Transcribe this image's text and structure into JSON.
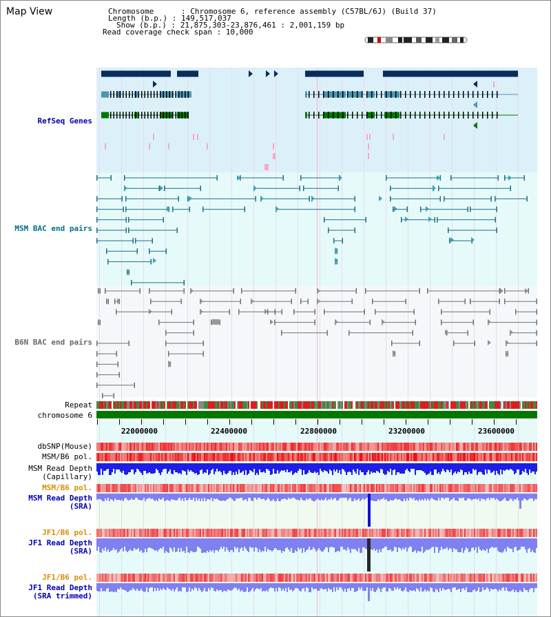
{
  "header": {
    "page_title": "Map View",
    "info_lines": [
      "Chromosome      : Chromosome 6, reference assembly (C57BL/6J) (Build 37)",
      "Length (b.p.) : 149,517,037",
      "Show (b.p.) : 21,875,303-23,876,461 : 2,001,159 bp",
      "Read coverage check span : 10,000"
    ]
  },
  "tracks": {
    "refseq_label": "RefSeq Genes",
    "msm_bac_label": "MSM BAC end pairs",
    "b6n_bac_label": "B6N BAC end pairs",
    "repeat_label": "Repeat",
    "chromosome_label": "chromosome 6",
    "dbsnp_label": "dbSNP(Mouse)",
    "msm_b6_pol_label": "MSM/B6 pol.",
    "msm_depth_cap_label_1": "MSM Read Depth",
    "msm_depth_cap_label_2": "(Capillary)",
    "msm_b6_pol2_label": "MSM/B6 pol.",
    "msm_depth_sra_label_1": "MSM Read Depth",
    "msm_depth_sra_label_2": "(SRA)",
    "jf1_pol_label": "JF1/B6 pol.",
    "jf1_depth_sra_label_1": "JF1 Read Depth",
    "jf1_depth_sra_label_2": "(SRA)",
    "jf1_pol2_label": "JF1/B6 pol.",
    "jf1_depth_trim_label_1": "JF1 Read Depth",
    "jf1_depth_trim_label_2": "(SRA trimmed)"
  },
  "axis": {
    "ticks": [
      "22000000",
      "22400000",
      "22800000",
      "23200000",
      "23600000"
    ]
  },
  "colors": {
    "refseq_bg": "#dcf0fa",
    "msm_bg": "#e6fafa",
    "b6n_bg": "#f4f8fa",
    "gene_navy": "#0a2c5a",
    "gene_teal": "#4a96b4",
    "gene_green": "#007800",
    "msm_line": "#1e6e82",
    "b6n_line": "#707070",
    "depth_blue": "#1e1ee6",
    "depth_light": "#8080f0",
    "label_blue": "#0000b4",
    "label_teal": "#006e82",
    "label_orange": "#dc8c00"
  }
}
